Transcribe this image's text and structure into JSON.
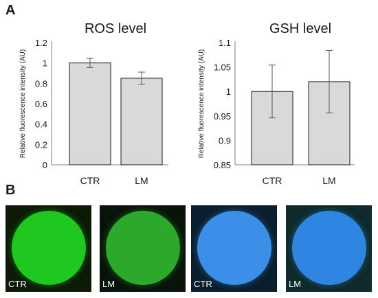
{
  "panels": {
    "a": "A",
    "b": "B"
  },
  "chart_data": [
    {
      "type": "bar",
      "title": "ROS level",
      "ylabel": "Relative fluorescence intensity (AU)",
      "xlabel": "",
      "categories": [
        "CTR",
        "LM"
      ],
      "values": [
        1.0,
        0.85
      ],
      "errors": [
        0.045,
        0.06
      ],
      "ylim": [
        0,
        1.2
      ],
      "yticks": [
        0,
        0.2,
        0.4,
        0.6,
        0.8,
        1,
        1.2
      ],
      "ytick_labels": [
        "0",
        "0.2",
        "0.4",
        "0.6",
        "0.8",
        "1",
        "1.2"
      ],
      "grid": false,
      "bar_color": "#d9d9d9"
    },
    {
      "type": "bar",
      "title": "GSH level",
      "ylabel": "Relative fluorescence intensity (AU)",
      "xlabel": "",
      "categories": [
        "CTR",
        "LM"
      ],
      "values": [
        1.0,
        1.02
      ],
      "errors": [
        0.054,
        0.064
      ],
      "ylim": [
        0.85,
        1.1
      ],
      "yticks": [
        0.85,
        0.9,
        0.95,
        1,
        1.05,
        1.1
      ],
      "ytick_labels": [
        "0.85",
        "0.9",
        "0.95",
        "1",
        "1.05",
        "1.1"
      ],
      "grid": false,
      "bar_color": "#d9d9d9"
    }
  ],
  "images": [
    {
      "label": "CTR",
      "color": "#1ec81e",
      "bg": "#0c1a06"
    },
    {
      "label": "LM",
      "color": "#2ca82a",
      "bg": "#08140a"
    },
    {
      "label": "CTR",
      "color": "#3a8fe6",
      "bg": "#0a1e2e"
    },
    {
      "label": "LM",
      "color": "#2f86e2",
      "bg": "#0e2a2a"
    }
  ]
}
